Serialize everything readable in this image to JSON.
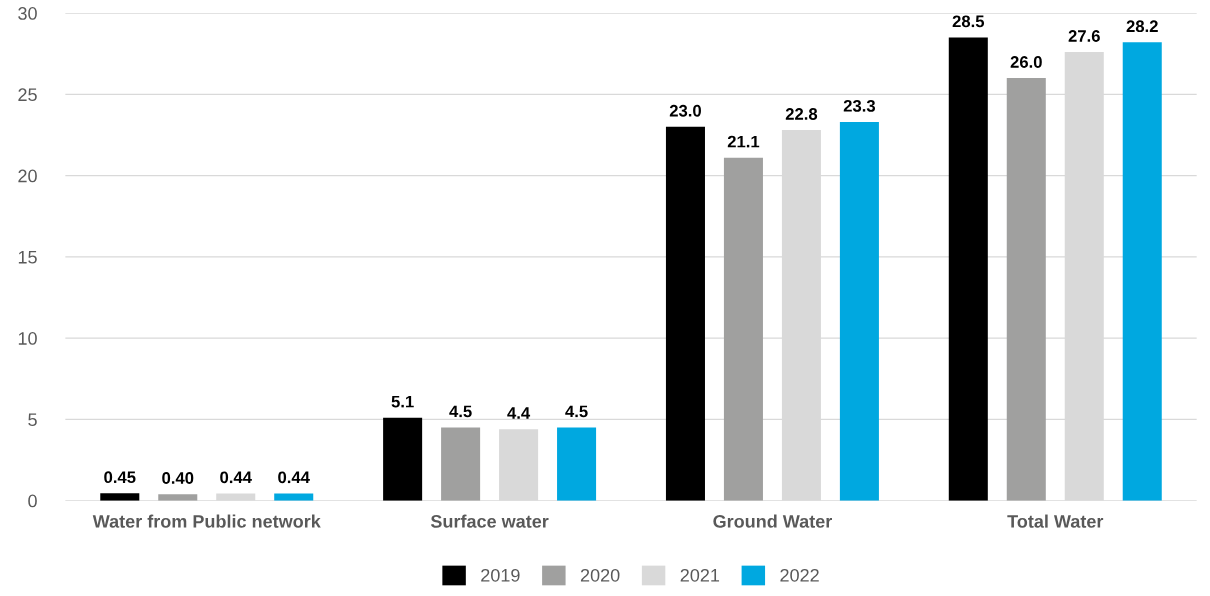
{
  "chart_data": {
    "type": "bar",
    "categories": [
      "Water from Public network",
      "Surface water",
      "Ground Water",
      "Total Water"
    ],
    "series": [
      {
        "name": "2019",
        "color": "#000000",
        "values": [
          0.45,
          5.1,
          23.0,
          28.5
        ],
        "value_labels": [
          "0.45",
          "5.1",
          "23.0",
          "28.5"
        ]
      },
      {
        "name": "2020",
        "color": "#a0a09f",
        "values": [
          0.4,
          4.5,
          21.1,
          26.0
        ],
        "value_labels": [
          "0.40",
          "4.5",
          "21.1",
          "26.0"
        ]
      },
      {
        "name": "2021",
        "color": "#d9d9d9",
        "values": [
          0.44,
          4.4,
          22.8,
          27.6
        ],
        "value_labels": [
          "0.44",
          "4.4",
          "22.8",
          "27.6"
        ]
      },
      {
        "name": "2022",
        "color": "#00a8e0",
        "values": [
          0.44,
          4.5,
          23.3,
          28.2
        ],
        "value_labels": [
          "0.44",
          "4.5",
          "23.3",
          "28.2"
        ]
      }
    ],
    "ylim": [
      0,
      30
    ],
    "yticks": [
      0,
      5,
      10,
      15,
      20,
      25,
      30
    ],
    "grid": "y",
    "legend": "bottom"
  }
}
